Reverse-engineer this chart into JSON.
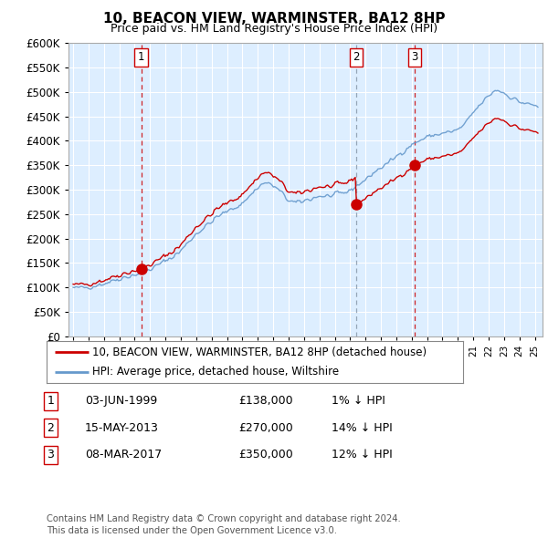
{
  "title": "10, BEACON VIEW, WARMINSTER, BA12 8HP",
  "subtitle": "Price paid vs. HM Land Registry's House Price Index (HPI)",
  "ylim": [
    0,
    600000
  ],
  "yticks": [
    0,
    50000,
    100000,
    150000,
    200000,
    250000,
    300000,
    350000,
    400000,
    450000,
    500000,
    550000,
    600000
  ],
  "ytick_labels": [
    "£0",
    "£50K",
    "£100K",
    "£150K",
    "£200K",
    "£250K",
    "£300K",
    "£350K",
    "£400K",
    "£450K",
    "£500K",
    "£550K",
    "£600K"
  ],
  "hpi_color": "#6699cc",
  "price_color": "#cc0000",
  "vline_color_red": "#cc0000",
  "vline_color_blue": "#8899aa",
  "chart_bg": "#ddeeff",
  "background_color": "#ffffff",
  "grid_color": "#ffffff",
  "sale_points": [
    {
      "date_num": 1999.42,
      "price": 138000,
      "label": "1",
      "vline_style": "red"
    },
    {
      "date_num": 2013.37,
      "price": 270000,
      "label": "2",
      "vline_style": "blue"
    },
    {
      "date_num": 2017.18,
      "price": 350000,
      "label": "3",
      "vline_style": "red"
    }
  ],
  "legend_entries": [
    {
      "label": "10, BEACON VIEW, WARMINSTER, BA12 8HP (detached house)",
      "color": "#cc0000"
    },
    {
      "label": "HPI: Average price, detached house, Wiltshire",
      "color": "#6699cc"
    }
  ],
  "table_rows": [
    {
      "num": "1",
      "date": "03-JUN-1999",
      "price": "£138,000",
      "hpi": "1% ↓ HPI"
    },
    {
      "num": "2",
      "date": "15-MAY-2013",
      "price": "£270,000",
      "hpi": "14% ↓ HPI"
    },
    {
      "num": "3",
      "date": "08-MAR-2017",
      "price": "£350,000",
      "hpi": "12% ↓ HPI"
    }
  ],
  "footnote": "Contains HM Land Registry data © Crown copyright and database right 2024.\nThis data is licensed under the Open Government Licence v3.0.",
  "xlim_start": 1994.7,
  "xlim_end": 2025.5
}
